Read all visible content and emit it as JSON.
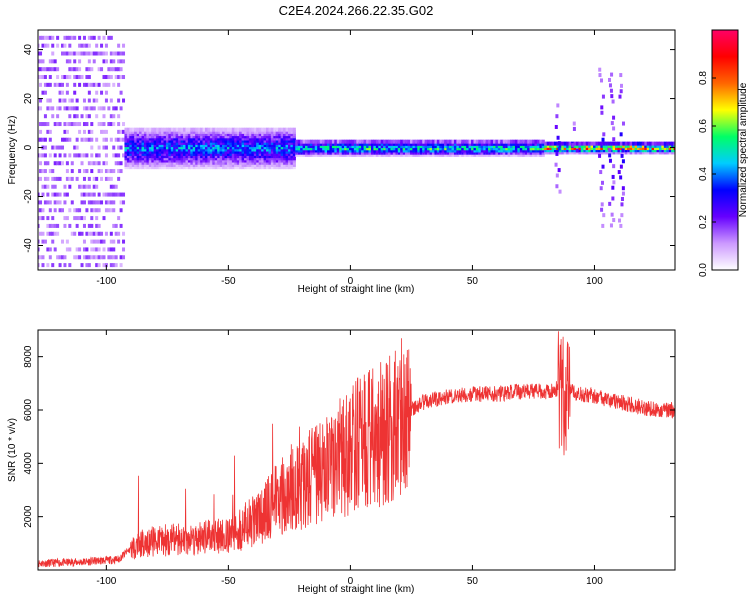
{
  "title": "C2E4.2024.266.22.35.G02",
  "chart_data": [
    {
      "type": "heatmap",
      "xlabel": "Height of straight line (km)",
      "ylabel": "Frequency (Hz)",
      "xlim": [
        -128,
        133
      ],
      "ylim": [
        -50,
        48
      ],
      "xticks": [
        -100,
        -50,
        0,
        50,
        100
      ],
      "yticks": [
        -40,
        -20,
        0,
        20,
        40
      ],
      "colorbar": {
        "label": "Normalized spectral amplitude",
        "range": [
          0.0,
          1.0
        ],
        "ticks": [
          0.0,
          0.2,
          0.4,
          0.6,
          0.8
        ],
        "colors": [
          "#ffffff",
          "#cc99ff",
          "#6600ff",
          "#0000ff",
          "#00ccff",
          "#00ff66",
          "#ffff00",
          "#ff6600",
          "#ff0000",
          "#ff0066"
        ]
      },
      "bands": [
        {
          "x_range": [
            -128,
            -92
          ],
          "freq_spread": 48,
          "peak_amplitude": 0.15
        },
        {
          "x_range": [
            -92,
            -22
          ],
          "freq_spread": 8,
          "peak_amplitude": 0.45
        },
        {
          "x_range": [
            -22,
            80
          ],
          "freq_spread": 3,
          "peak_amplitude": 0.6
        },
        {
          "x_range": [
            80,
            133
          ],
          "freq_spread": 2,
          "peak_amplitude": 0.9
        }
      ]
    },
    {
      "type": "line",
      "xlabel": "Height of straight line (km)",
      "ylabel": "SNR (10 * v/v)",
      "xlim": [
        -128,
        133
      ],
      "ylim": [
        0,
        9000
      ],
      "xticks": [
        -100,
        -50,
        0,
        50,
        100
      ],
      "yticks": [
        2000,
        4000,
        6000,
        8000
      ],
      "color": "#ee3333",
      "x": [
        -128,
        -110,
        -95,
        -90,
        -85,
        -80,
        -70,
        -60,
        -50,
        -40,
        -35,
        -30,
        -25,
        -20,
        -15,
        -10,
        -5,
        0,
        5,
        10,
        15,
        20,
        25,
        30,
        35,
        40,
        45,
        50,
        55,
        60,
        65,
        70,
        75,
        80,
        85,
        88,
        90,
        95,
        100,
        105,
        110,
        115,
        120,
        125,
        133
      ],
      "y": [
        250,
        300,
        400,
        800,
        1000,
        1100,
        1150,
        1200,
        1300,
        1800,
        2200,
        2600,
        3100,
        3300,
        3500,
        3800,
        4100,
        4500,
        4800,
        5000,
        5200,
        5600,
        6000,
        6300,
        6400,
        6500,
        6550,
        6600,
        6600,
        6600,
        6650,
        6700,
        6700,
        6700,
        6800,
        6500,
        6700,
        6600,
        6500,
        6400,
        6300,
        6200,
        6100,
        6000,
        6000
      ]
    }
  ]
}
